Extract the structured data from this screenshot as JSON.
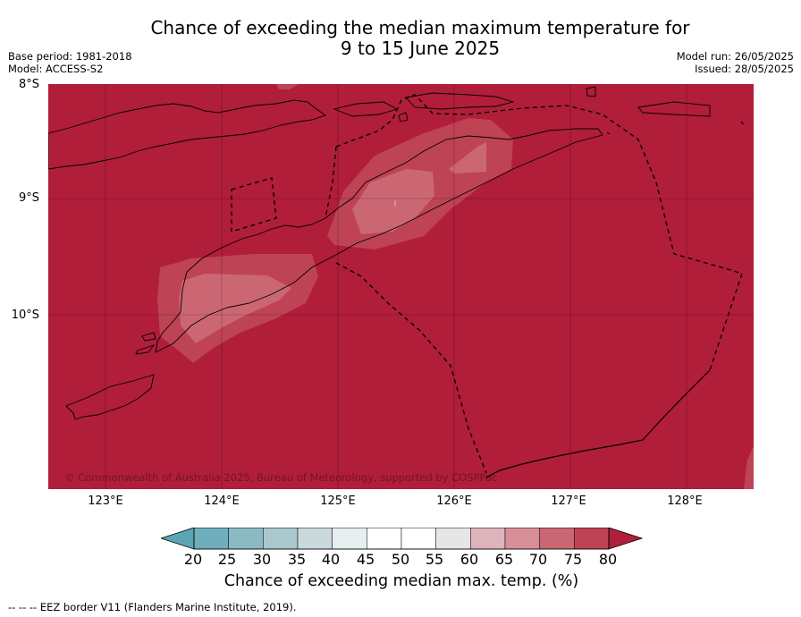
{
  "header": {
    "title_line1": "Chance of exceeding the median maximum temperature for",
    "title_line2": "9 to 15 June 2025",
    "base_period": "Base period: 1981-2018",
    "model": "Model: ACCESS-S2",
    "model_run": "Model run: 26/05/2025",
    "issued": "Issued: 28/05/2025"
  },
  "map": {
    "lat_labels": [
      "8°S",
      "9°S",
      "10°S"
    ],
    "lon_labels": [
      "123°E",
      "124°E",
      "125°E",
      "126°E",
      "127°E",
      "128°E"
    ],
    "copyright": "© Commonwealth of Australia 2025, Bureau of Meteorology, supported by COSPPac",
    "background_color": "#b01e3a"
  },
  "colorbar": {
    "ticks": [
      "20",
      "25",
      "30",
      "35",
      "40",
      "45",
      "50",
      "55",
      "60",
      "65",
      "70",
      "75",
      "80"
    ],
    "colors": [
      "#5ba6b4",
      "#6faebd",
      "#8bb9c4",
      "#a8c8cd",
      "#c9d9dd",
      "#e7eef0",
      "#ffffff",
      "#ffffff",
      "#e6e6e6",
      "#dfb3bb",
      "#d88e98",
      "#cb6773",
      "#bd4355",
      "#b01e3a"
    ],
    "label": "Chance of exceeding median max. temp. (%)"
  },
  "footer": {
    "eez_note": "--  --  -- EEZ border V11 (Flanders Marine Institute, 2019)."
  }
}
